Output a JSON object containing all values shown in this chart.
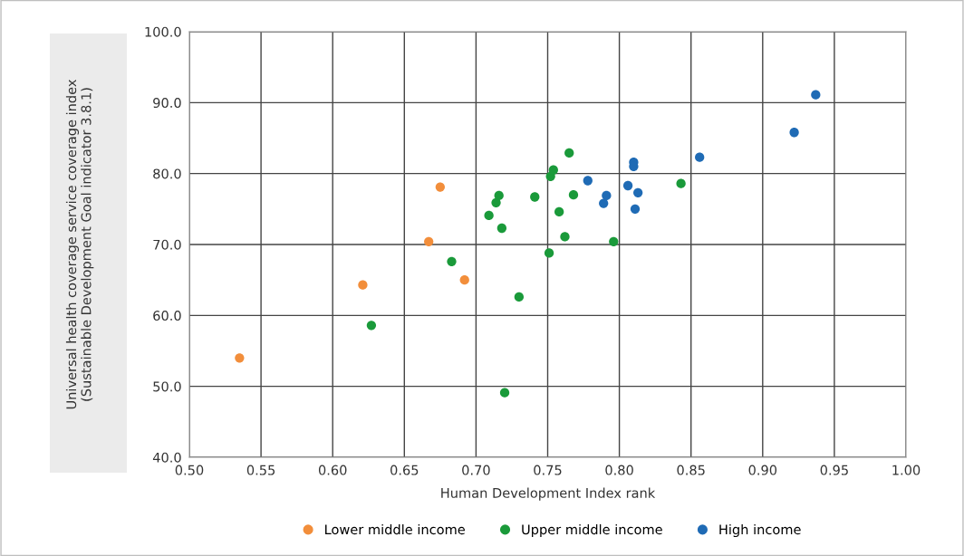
{
  "chart_data": {
    "type": "scatter",
    "xlabel": "Human Development Index rank",
    "ylabel": "Universal health coverage service coverage index\n(Sustainable Development Goal indicator 3.8.1)",
    "xlim": [
      0.5,
      1.0
    ],
    "ylim": [
      40,
      100
    ],
    "xticks": [
      {
        "value": 0.5,
        "label": "0.50"
      },
      {
        "value": 0.55,
        "label": "0.55"
      },
      {
        "value": 0.6,
        "label": "0.60"
      },
      {
        "value": 0.65,
        "label": "0.65"
      },
      {
        "value": 0.7,
        "label": "0.70"
      },
      {
        "value": 0.75,
        "label": "0.75"
      },
      {
        "value": 0.8,
        "label": "0.80"
      },
      {
        "value": 0.85,
        "label": "0.85"
      },
      {
        "value": 0.9,
        "label": "0.90"
      },
      {
        "value": 0.95,
        "label": "0.95"
      },
      {
        "value": 1.0,
        "label": "1.00"
      }
    ],
    "yticks": [
      {
        "value": 40,
        "label": "40.0"
      },
      {
        "value": 50,
        "label": "50.0"
      },
      {
        "value": 60,
        "label": "60.0"
      },
      {
        "value": 70,
        "label": "70.0"
      },
      {
        "value": 80,
        "label": "80.0"
      },
      {
        "value": 90,
        "label": "90.0"
      },
      {
        "value": 100,
        "label": "100.0"
      }
    ],
    "grid": true,
    "legend": "bottom",
    "marker": "circle",
    "series": [
      {
        "name": "Lower middle income",
        "color": "#f28e3b",
        "x": [
          0.535,
          0.621,
          0.667,
          0.675,
          0.692
        ],
        "values": [
          54.0,
          64.3,
          70.4,
          78.1,
          65.0
        ]
      },
      {
        "name": "Upper middle income",
        "color": "#1a9a3a",
        "x": [
          0.627,
          0.683,
          0.709,
          0.714,
          0.716,
          0.718,
          0.72,
          0.73,
          0.741,
          0.751,
          0.752,
          0.754,
          0.758,
          0.762,
          0.765,
          0.768,
          0.796,
          0.843
        ],
        "values": [
          58.6,
          67.6,
          74.1,
          75.9,
          76.9,
          72.3,
          49.1,
          62.6,
          76.7,
          68.8,
          79.6,
          80.5,
          74.6,
          71.1,
          82.9,
          77.0,
          70.4,
          78.6
        ]
      },
      {
        "name": "High income",
        "color": "#1f6bb5",
        "x": [
          0.778,
          0.789,
          0.791,
          0.806,
          0.81,
          0.81,
          0.811,
          0.813,
          0.856,
          0.922,
          0.937
        ],
        "values": [
          79.0,
          75.8,
          76.9,
          78.3,
          81.6,
          81.0,
          75.0,
          77.3,
          82.3,
          85.8,
          91.1
        ]
      }
    ]
  }
}
